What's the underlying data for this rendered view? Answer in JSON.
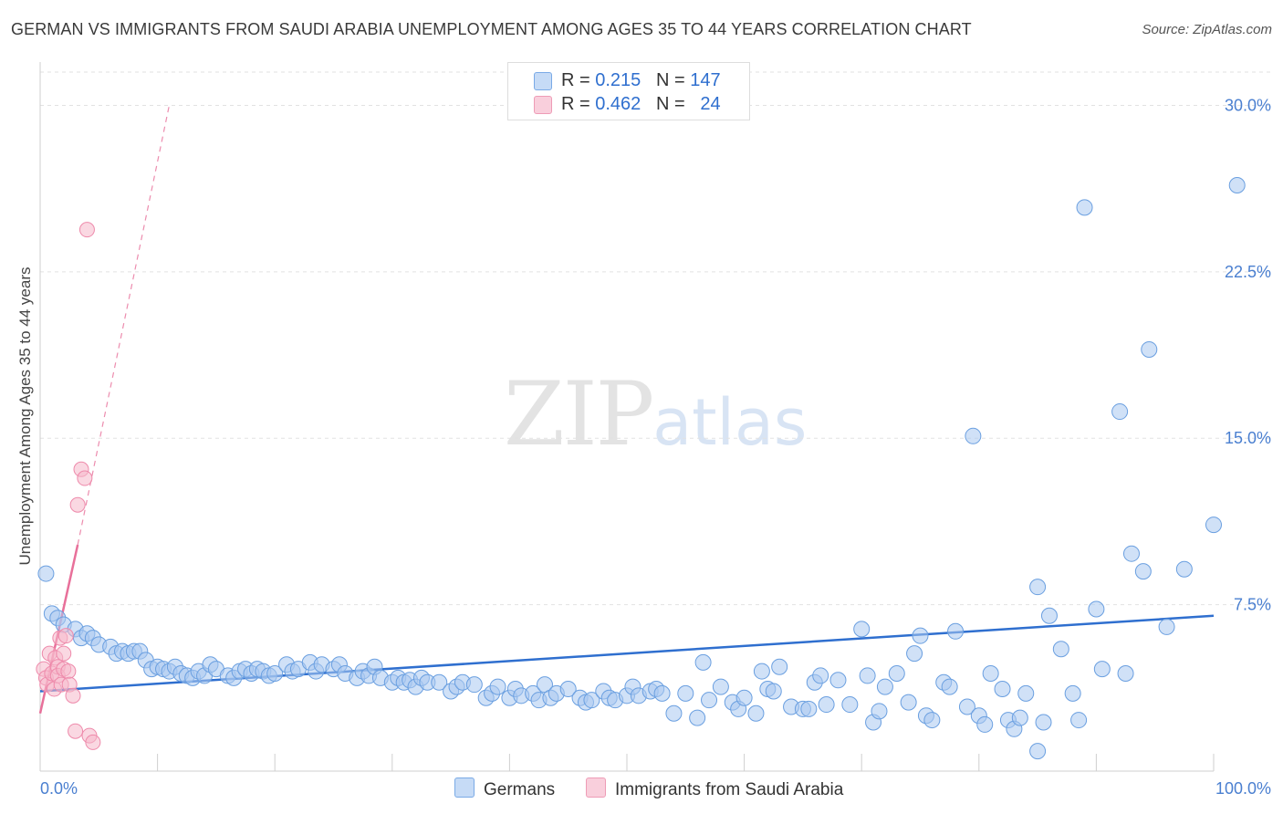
{
  "header": {
    "title": "GERMAN VS IMMIGRANTS FROM SAUDI ARABIA UNEMPLOYMENT AMONG AGES 35 TO 44 YEARS CORRELATION CHART",
    "source": "Source: ZipAtlas.com"
  },
  "watermark": {
    "zip": "ZIP",
    "atlas": "atlas"
  },
  "legend": {
    "rows": [
      {
        "r_label": "R = ",
        "r_value": "0.215",
        "n_label": "N = ",
        "n_value": "147",
        "color": "#a9c8f0"
      },
      {
        "r_label": "R = ",
        "r_value": "0.462",
        "n_label": "N = ",
        "n_value": "24",
        "color": "#f5b8cb"
      }
    ]
  },
  "bottom_legend": {
    "germans": "Germans",
    "saudi": "Immigrants from Saudi Arabia"
  },
  "chart_data": {
    "type": "scatter",
    "title": "GERMAN VS IMMIGRANTS FROM SAUDI ARABIA UNEMPLOYMENT AMONG AGES 35 TO 44 YEARS CORRELATION CHART",
    "xlabel": "",
    "ylabel": "Unemployment Among Ages 35 to 44 years",
    "xlim": [
      0,
      100
    ],
    "ylim": [
      0,
      31.5
    ],
    "x_tick_labels": [
      "0.0%",
      "100.0%"
    ],
    "y_ticks": [
      7.5,
      15.0,
      22.5,
      30.0
    ],
    "y_tick_labels": [
      "7.5%",
      "15.0%",
      "22.5%",
      "30.0%"
    ],
    "grid": true,
    "colors": {
      "germans": "#a9c8f0",
      "germans_edge": "#6a9fe0",
      "germans_line": "#2f6fcf",
      "saudi": "#f5b8cb",
      "saudi_edge": "#ee8aab",
      "saudi_line": "#e8709a"
    },
    "series": [
      {
        "name": "Germans",
        "trend": {
          "x0": 0,
          "y0": 3.6,
          "x1": 100,
          "y1": 7.0
        },
        "points": [
          [
            0.5,
            8.9
          ],
          [
            1,
            7.1
          ],
          [
            1.5,
            6.9
          ],
          [
            2,
            6.6
          ],
          [
            3,
            6.4
          ],
          [
            3.5,
            6.0
          ],
          [
            4,
            6.2
          ],
          [
            4.5,
            6.0
          ],
          [
            5,
            5.7
          ],
          [
            6,
            5.6
          ],
          [
            6.5,
            5.3
          ],
          [
            7,
            5.4
          ],
          [
            7.5,
            5.3
          ],
          [
            8,
            5.4
          ],
          [
            8.5,
            5.4
          ],
          [
            9,
            5.0
          ],
          [
            9.5,
            4.6
          ],
          [
            10,
            4.7
          ],
          [
            10.5,
            4.6
          ],
          [
            11,
            4.5
          ],
          [
            11.5,
            4.7
          ],
          [
            12,
            4.4
          ],
          [
            12.5,
            4.3
          ],
          [
            13,
            4.2
          ],
          [
            13.5,
            4.5
          ],
          [
            14,
            4.3
          ],
          [
            14.5,
            4.8
          ],
          [
            15,
            4.6
          ],
          [
            16,
            4.3
          ],
          [
            16.5,
            4.2
          ],
          [
            17,
            4.5
          ],
          [
            17.5,
            4.6
          ],
          [
            18,
            4.4
          ],
          [
            18.5,
            4.6
          ],
          [
            19,
            4.5
          ],
          [
            19.5,
            4.3
          ],
          [
            20,
            4.4
          ],
          [
            21,
            4.8
          ],
          [
            21.5,
            4.5
          ],
          [
            22,
            4.6
          ],
          [
            23,
            4.9
          ],
          [
            23.5,
            4.5
          ],
          [
            24,
            4.8
          ],
          [
            25,
            4.6
          ],
          [
            25.5,
            4.8
          ],
          [
            26,
            4.4
          ],
          [
            27,
            4.2
          ],
          [
            27.5,
            4.5
          ],
          [
            28,
            4.3
          ],
          [
            28.5,
            4.7
          ],
          [
            29,
            4.2
          ],
          [
            30,
            4.0
          ],
          [
            30.5,
            4.2
          ],
          [
            31,
            4.0
          ],
          [
            31.5,
            4.1
          ],
          [
            32,
            3.8
          ],
          [
            32.5,
            4.2
          ],
          [
            33,
            4.0
          ],
          [
            34,
            4.0
          ],
          [
            35,
            3.6
          ],
          [
            35.5,
            3.8
          ],
          [
            36,
            4.0
          ],
          [
            37,
            3.9
          ],
          [
            38,
            3.3
          ],
          [
            38.5,
            3.5
          ],
          [
            39,
            3.8
          ],
          [
            40,
            3.3
          ],
          [
            40.5,
            3.7
          ],
          [
            41,
            3.4
          ],
          [
            42,
            3.5
          ],
          [
            42.5,
            3.2
          ],
          [
            43,
            3.9
          ],
          [
            43.5,
            3.3
          ],
          [
            44,
            3.5
          ],
          [
            45,
            3.7
          ],
          [
            46,
            3.3
          ],
          [
            46.5,
            3.1
          ],
          [
            47,
            3.2
          ],
          [
            48,
            3.6
          ],
          [
            48.5,
            3.3
          ],
          [
            49,
            3.2
          ],
          [
            50,
            3.4
          ],
          [
            50.5,
            3.8
          ],
          [
            51,
            3.4
          ],
          [
            52,
            3.6
          ],
          [
            52.5,
            3.7
          ],
          [
            53,
            3.5
          ],
          [
            54,
            2.6
          ],
          [
            55,
            3.5
          ],
          [
            56,
            2.4
          ],
          [
            56.5,
            4.9
          ],
          [
            57,
            3.2
          ],
          [
            58,
            3.8
          ],
          [
            59,
            3.1
          ],
          [
            59.5,
            2.8
          ],
          [
            60,
            3.3
          ],
          [
            61,
            2.6
          ],
          [
            61.5,
            4.5
          ],
          [
            62,
            3.7
          ],
          [
            62.5,
            3.6
          ],
          [
            63,
            4.7
          ],
          [
            64,
            2.9
          ],
          [
            65,
            2.8
          ],
          [
            65.5,
            2.8
          ],
          [
            66,
            4.0
          ],
          [
            66.5,
            4.3
          ],
          [
            67,
            3.0
          ],
          [
            68,
            4.1
          ],
          [
            69,
            3.0
          ],
          [
            70,
            6.4
          ],
          [
            70.5,
            4.3
          ],
          [
            71,
            2.2
          ],
          [
            71.5,
            2.7
          ],
          [
            72,
            3.8
          ],
          [
            73,
            4.4
          ],
          [
            74,
            3.1
          ],
          [
            74.5,
            5.3
          ],
          [
            75,
            6.1
          ],
          [
            75.5,
            2.5
          ],
          [
            76,
            2.3
          ],
          [
            77,
            4.0
          ],
          [
            77.5,
            3.8
          ],
          [
            78,
            6.3
          ],
          [
            79,
            2.9
          ],
          [
            79.5,
            15.1
          ],
          [
            80,
            2.5
          ],
          [
            80.5,
            2.1
          ],
          [
            81,
            4.4
          ],
          [
            82,
            3.7
          ],
          [
            82.5,
            2.3
          ],
          [
            83,
            1.9
          ],
          [
            83.5,
            2.4
          ],
          [
            84,
            3.5
          ],
          [
            85,
            8.3
          ],
          [
            85.5,
            2.2
          ],
          [
            86,
            7.0
          ],
          [
            87,
            5.5
          ],
          [
            88,
            3.5
          ],
          [
            88.5,
            2.3
          ],
          [
            89,
            25.4
          ],
          [
            90,
            7.3
          ],
          [
            90.5,
            4.6
          ],
          [
            92,
            16.2
          ],
          [
            92.5,
            4.4
          ],
          [
            93,
            9.8
          ],
          [
            94,
            9.0
          ],
          [
            94.5,
            19.0
          ],
          [
            96,
            6.5
          ],
          [
            97.5,
            9.1
          ],
          [
            100,
            11.1
          ],
          [
            102,
            26.4
          ],
          [
            85,
            0.9
          ]
        ]
      },
      {
        "name": "Immigrants from Saudi Arabia",
        "trend": {
          "x0": 0,
          "y0": 2.6,
          "x1": 3.2,
          "y1": 10.2
        },
        "trend_extended": {
          "x0": 3.2,
          "y0": 10.2,
          "x1": 11.0,
          "y1": 30.0
        },
        "points": [
          [
            0.3,
            4.6
          ],
          [
            0.5,
            4.2
          ],
          [
            0.6,
            3.9
          ],
          [
            0.8,
            5.3
          ],
          [
            1,
            4.4
          ],
          [
            1.2,
            3.7
          ],
          [
            1.3,
            5.1
          ],
          [
            1.5,
            4.7
          ],
          [
            1.5,
            4.3
          ],
          [
            1.7,
            6.0
          ],
          [
            1.8,
            3.9
          ],
          [
            2,
            5.3
          ],
          [
            2,
            4.6
          ],
          [
            2.2,
            6.1
          ],
          [
            2.4,
            4.5
          ],
          [
            2.5,
            3.9
          ],
          [
            2.8,
            3.4
          ],
          [
            3,
            1.8
          ],
          [
            3.2,
            12.0
          ],
          [
            3.5,
            13.6
          ],
          [
            3.8,
            13.2
          ],
          [
            4,
            24.4
          ],
          [
            4.2,
            1.6
          ],
          [
            4.5,
            1.3
          ]
        ]
      }
    ]
  }
}
